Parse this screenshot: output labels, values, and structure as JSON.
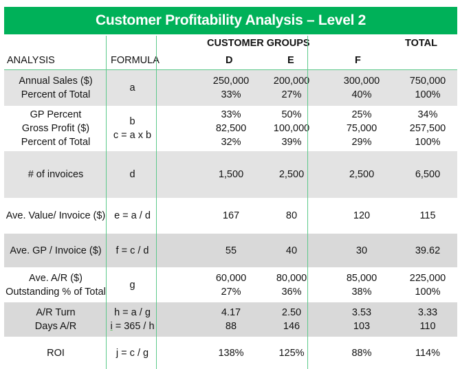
{
  "title": "Customer Profitability Analysis – Level 2",
  "header": {
    "analysis": "ANALYSIS",
    "formula": "FORMULA",
    "customer_groups": "CUSTOMER GROUPS",
    "total": "TOTAL",
    "groups": [
      "D",
      "E",
      "F"
    ]
  },
  "colors": {
    "accent": "#00b159",
    "divider": "#5cc98a",
    "row_gray": "#e3e3e3"
  },
  "rows": [
    {
      "labels": [
        "Annual Sales ($)",
        "Percent of Total"
      ],
      "formula": [
        "a"
      ],
      "d": [
        "250,000",
        "33%"
      ],
      "e": [
        "200,000",
        "27%"
      ],
      "f": [
        "300,000",
        "40%"
      ],
      "total": [
        "750,000",
        "100%"
      ]
    },
    {
      "labels": [
        "GP Percent",
        "Gross Profit ($)",
        "Percent of Total"
      ],
      "formula": [
        "b",
        "c = a x b"
      ],
      "d": [
        "33%",
        "82,500",
        "32%"
      ],
      "e": [
        "50%",
        "100,000",
        "39%"
      ],
      "f": [
        "25%",
        "75,000",
        "29%"
      ],
      "total": [
        "34%",
        "257,500",
        "100%"
      ]
    },
    {
      "labels": [
        "# of invoices"
      ],
      "formula": [
        "d"
      ],
      "d": [
        "1,500"
      ],
      "e": [
        "2,500"
      ],
      "f": [
        "2,500"
      ],
      "total": [
        "6,500"
      ]
    },
    {
      "labels": [
        "Ave. Value/ Invoice ($)"
      ],
      "formula": [
        "e = a / d"
      ],
      "d": [
        "167"
      ],
      "e": [
        "80"
      ],
      "f": [
        "120"
      ],
      "total": [
        "115"
      ]
    },
    {
      "labels": [
        "Ave. GP / Invoice ($)"
      ],
      "formula": [
        "f = c / d"
      ],
      "d": [
        "55"
      ],
      "e": [
        "40"
      ],
      "f": [
        "30"
      ],
      "total": [
        "39.62"
      ]
    },
    {
      "labels": [
        "Ave. A/R ($)",
        "Outstanding % of Total"
      ],
      "formula": [
        "g"
      ],
      "d": [
        "60,000",
        "27%"
      ],
      "e": [
        "80,000",
        "36%"
      ],
      "f": [
        "85,000",
        "38%"
      ],
      "total": [
        "225,000",
        "100%"
      ]
    },
    {
      "labels": [
        "A/R Turn",
        "Days A/R"
      ],
      "formula": [
        "h = a / g",
        "i = 365 / h"
      ],
      "d": [
        "4.17",
        "88"
      ],
      "e": [
        "2.50",
        "146"
      ],
      "f": [
        "3.53",
        "103"
      ],
      "total": [
        "3.33",
        "110"
      ]
    },
    {
      "labels": [
        "ROI"
      ],
      "formula": [
        "j = c / g"
      ],
      "d": [
        "138%"
      ],
      "e": [
        "125%"
      ],
      "f": [
        "88%"
      ],
      "total": [
        "114%"
      ]
    }
  ]
}
